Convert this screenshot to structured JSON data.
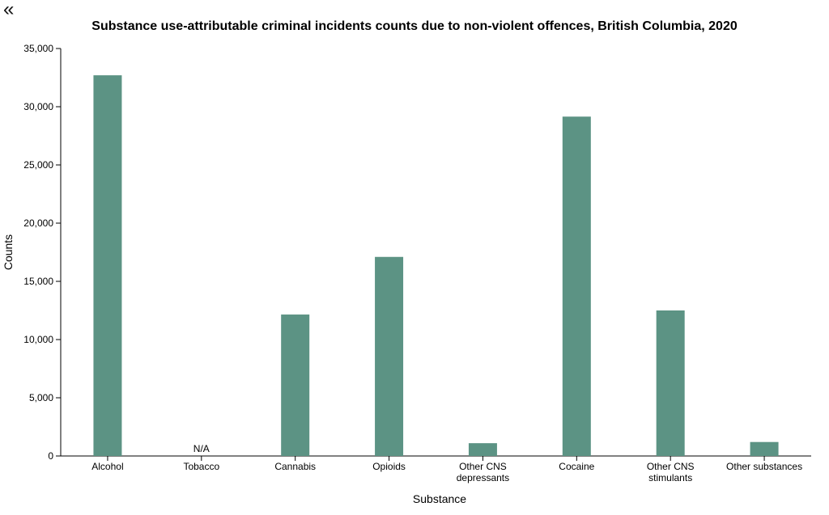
{
  "back_icon": "double-chevron-left-icon",
  "back_glyph": "«",
  "bar_color": "#5c9384",
  "chart_data": {
    "type": "bar",
    "title": "Substance use-attributable criminal incidents counts due to non-violent offences, British Columbia, 2020",
    "xlabel": "Substance",
    "ylabel": "Counts",
    "ylim": [
      0,
      35000
    ],
    "yticks": [
      0,
      5000,
      10000,
      15000,
      20000,
      25000,
      30000,
      35000
    ],
    "ytick_labels": [
      "0",
      "5,000",
      "10,000",
      "15,000",
      "20,000",
      "25,000",
      "30,000",
      "35,000"
    ],
    "categories": [
      [
        "Alcohol"
      ],
      [
        "Tobacco"
      ],
      [
        "Cannabis"
      ],
      [
        "Opioids"
      ],
      [
        "Other CNS",
        "depressants"
      ],
      [
        "Cocaine"
      ],
      [
        "Other CNS",
        "stimulants"
      ],
      [
        "Other substances"
      ]
    ],
    "values": [
      32700,
      null,
      12150,
      17100,
      1100,
      29150,
      12500,
      1200
    ],
    "missing_label": "N/A",
    "grid": false,
    "legend": "none"
  }
}
